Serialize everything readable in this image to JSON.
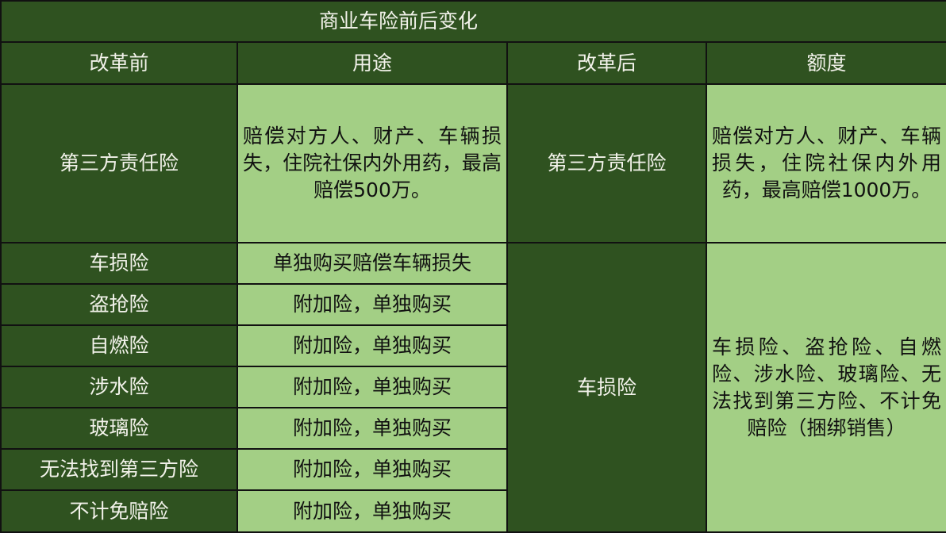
{
  "title": "商业车险前后变化",
  "headers": [
    "改革前",
    "用途",
    "改革后",
    "额度"
  ],
  "third_party": {
    "before": "第三方责任险",
    "usage": "赔偿对方人、财产、车辆损失，住院社保内外用药，最高赔偿500万。",
    "after": "第三方责任险",
    "amount": "赔偿对方人、财产、车辆损失，住院社保内外用药，最高赔偿1000万。"
  },
  "rows": [
    {
      "before": "车损险",
      "usage": "单独购买赔偿车辆损失"
    },
    {
      "before": "盗抢险",
      "usage": "附加险，单独购买"
    },
    {
      "before": "自燃险",
      "usage": "附加险，单独购买"
    },
    {
      "before": "涉水险",
      "usage": "附加险，单独购买"
    },
    {
      "before": "玻璃险",
      "usage": "附加险，单独购买"
    },
    {
      "before": "无法找到第三方险",
      "usage": "附加险，单独购买"
    },
    {
      "before": "不计免赔险",
      "usage": "附加险，单独购买"
    }
  ],
  "merged": {
    "after": "车损险",
    "amount": "车损险、盗抢险、自燃险、涉水险、玻璃险、无法找到第三方险、不计免赔险（捆绑销售）"
  },
  "colors": {
    "dark_green": "#2f5220",
    "light_green": "#a3cf85"
  }
}
